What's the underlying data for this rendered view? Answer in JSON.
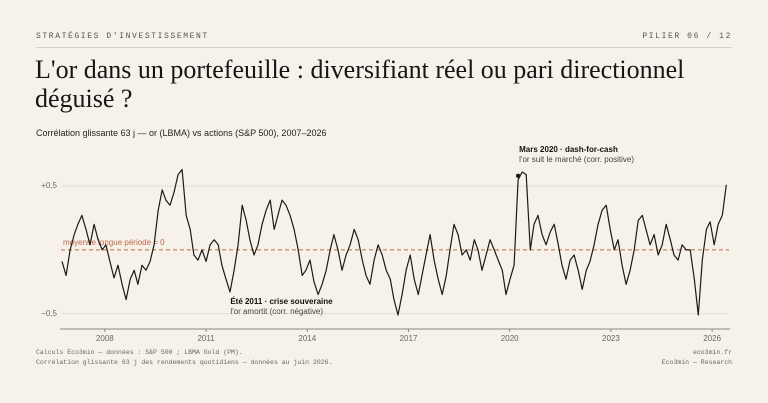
{
  "header": {
    "kicker": "STRATÉGIES D'INVESTISSEMENT",
    "page": "PILIER 06 / 12"
  },
  "title": "L'or dans un portefeuille : diversifiant réel ou pari directionnel déguisé ?",
  "subtitle": "Corrélation glissante 63 j — or (LBMA) vs actions (S&P 500), 2007–2026",
  "chart_data": {
    "type": "line",
    "color": "#1a1a1a",
    "xlim": [
      2006.7,
      2026.5
    ],
    "xticks": [
      2008,
      2011,
      2014,
      2017,
      2020,
      2023,
      2026
    ],
    "ylim": [
      -0.62,
      0.9
    ],
    "yticks": [
      {
        "value": 0.5,
        "label": "+0,5"
      },
      {
        "value": -0.5,
        "label": "−0,5"
      }
    ],
    "grid": true,
    "reference_line": {
      "value": 0,
      "label": "moyenne longue période = 0",
      "color": "#c0674a"
    },
    "annotations": [
      {
        "x": 2020.25,
        "y": 0.58,
        "title": "Mars 2020 · dash-for-cash",
        "text": "l'or suit le marché (corr. positive)",
        "marker": true
      },
      {
        "x": 2011.6,
        "y": -0.33,
        "title": "Été 2011 · crise souveraine",
        "text": "l'or amortit (corr. négative)",
        "marker": false
      }
    ],
    "x": [
      2006.73,
      2006.85,
      2006.97,
      2007.09,
      2007.2,
      2007.32,
      2007.44,
      2007.56,
      2007.68,
      2007.8,
      2007.92,
      2008.03,
      2008.15,
      2008.27,
      2008.39,
      2008.51,
      2008.63,
      2008.75,
      2008.87,
      2008.98,
      2009.1,
      2009.22,
      2009.34,
      2009.46,
      2009.58,
      2009.7,
      2009.81,
      2009.93,
      2010.05,
      2010.17,
      2010.29,
      2010.41,
      2010.53,
      2010.64,
      2010.76,
      2010.88,
      2011.0,
      2011.12,
      2011.24,
      2011.36,
      2011.47,
      2011.59,
      2011.71,
      2011.83,
      2011.95,
      2012.07,
      2012.19,
      2012.3,
      2012.42,
      2012.54,
      2012.66,
      2012.78,
      2012.9,
      2013.02,
      2013.13,
      2013.25,
      2013.37,
      2013.49,
      2013.61,
      2013.73,
      2013.85,
      2013.96,
      2014.08,
      2014.2,
      2014.32,
      2014.44,
      2014.56,
      2014.68,
      2014.79,
      2014.91,
      2015.03,
      2015.15,
      2015.27,
      2015.39,
      2015.51,
      2015.63,
      2015.74,
      2015.86,
      2015.98,
      2016.1,
      2016.22,
      2016.34,
      2016.46,
      2016.57,
      2016.69,
      2016.81,
      2016.93,
      2017.05,
      2017.17,
      2017.29,
      2017.4,
      2017.52,
      2017.64,
      2017.76,
      2017.88,
      2018.0,
      2018.12,
      2018.23,
      2018.35,
      2018.47,
      2018.59,
      2018.71,
      2018.83,
      2018.95,
      2019.06,
      2019.18,
      2019.3,
      2019.42,
      2019.54,
      2019.66,
      2019.78,
      2019.89,
      2020.01,
      2020.13,
      2020.25,
      2020.37,
      2020.49,
      2020.61,
      2020.72,
      2020.84,
      2020.96,
      2021.08,
      2021.2,
      2021.32,
      2021.44,
      2021.55,
      2021.67,
      2021.79,
      2021.91,
      2022.03,
      2022.15,
      2022.27,
      2022.38,
      2022.5,
      2022.62,
      2022.74,
      2022.86,
      2022.98,
      2023.1,
      2023.21,
      2023.33,
      2023.45,
      2023.57,
      2023.69,
      2023.81,
      2023.93,
      2024.04,
      2024.16,
      2024.28,
      2024.4,
      2024.52,
      2024.64,
      2024.76,
      2024.87,
      2024.99,
      2025.11,
      2025.23,
      2025.35,
      2025.47,
      2025.59,
      2025.71,
      2025.83,
      2025.94,
      2026.06,
      2026.18,
      2026.3,
      2026.42
    ],
    "values": [
      -0.09,
      -0.2,
      0,
      0.12,
      0.2,
      0.27,
      0.16,
      0.04,
      0.2,
      0.08,
      0,
      0.04,
      -0.09,
      -0.22,
      -0.12,
      -0.27,
      -0.39,
      -0.23,
      -0.16,
      -0.27,
      -0.12,
      -0.16,
      -0.09,
      0.04,
      0.31,
      0.47,
      0.39,
      0.35,
      0.45,
      0.59,
      0.63,
      0.27,
      0.16,
      -0.04,
      -0.08,
      0,
      -0.09,
      0.04,
      0.08,
      0.04,
      -0.12,
      -0.23,
      -0.33,
      -0.16,
      0.04,
      0.35,
      0.23,
      0.08,
      -0.04,
      0.04,
      0.2,
      0.31,
      0.39,
      0.16,
      0.27,
      0.39,
      0.35,
      0.27,
      0.16,
      0,
      -0.2,
      -0.16,
      -0.08,
      -0.25,
      -0.35,
      -0.27,
      -0.16,
      0,
      0.12,
      0,
      -0.16,
      -0.04,
      0.04,
      0.16,
      0.08,
      -0.08,
      -0.2,
      -0.27,
      -0.08,
      0.04,
      -0.04,
      -0.16,
      -0.23,
      -0.39,
      -0.51,
      -0.35,
      -0.16,
      -0.04,
      -0.23,
      -0.35,
      -0.2,
      -0.04,
      0.12,
      -0.08,
      -0.23,
      -0.35,
      -0.2,
      0,
      0.2,
      0.12,
      -0.04,
      0,
      -0.08,
      0.08,
      0,
      -0.16,
      -0.04,
      0.08,
      0,
      -0.08,
      -0.16,
      -0.35,
      -0.23,
      -0.12,
      0.55,
      0.61,
      0.59,
      0,
      0.2,
      0.27,
      0.12,
      0.04,
      0.14,
      0.2,
      0.04,
      -0.12,
      -0.23,
      -0.08,
      -0.04,
      -0.16,
      -0.31,
      -0.16,
      -0.09,
      0.04,
      0.2,
      0.31,
      0.35,
      0.16,
      0,
      0.08,
      -0.12,
      -0.27,
      -0.16,
      0,
      0.23,
      0.27,
      0.16,
      0.04,
      0.12,
      -0.04,
      0.04,
      0.2,
      0.08,
      -0.04,
      -0.08,
      0.04,
      0,
      0,
      -0.23,
      -0.51,
      -0.08,
      0.16,
      0.22,
      0.04,
      0.2,
      0.27,
      0.51
    ]
  },
  "footer": {
    "left": [
      "Calculs Eco3min — données : S&P 500 ; LBMA Gold (PM).",
      "Corrélation glissante 63 j des rendements quotidiens — données au juin 2026."
    ],
    "right": [
      "eco3min.fr",
      "Eco3min — Research"
    ]
  }
}
